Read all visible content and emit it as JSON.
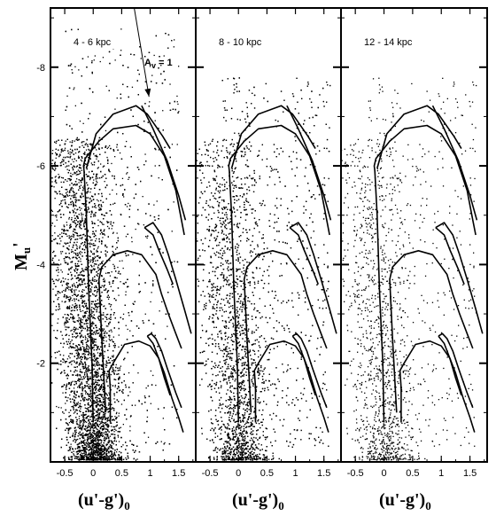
{
  "chart_data": {
    "type": "scatter",
    "ylabel_main": "M",
    "ylabel_sub": "u",
    "ylabel_prime": "'",
    "xlabel_main": "(u'-g')",
    "xlabel_sub": "0",
    "x_ticks": [
      "-0.5",
      "0",
      "0.5",
      "1",
      "1.5"
    ],
    "y_ticks": [
      "-8",
      "-6",
      "-4",
      "-2"
    ],
    "xlim": [
      -0.75,
      1.8
    ],
    "ylim": [
      0,
      -9.2
    ],
    "annotation": {
      "main": "A",
      "sub": "v",
      "rest": " = 1",
      "arrow_from": [
        0.72,
        -9.2
      ],
      "arrow_to": [
        0.98,
        -7.4
      ]
    },
    "panels": [
      {
        "label": "4 - 6 kpc",
        "density": 1.0
      },
      {
        "label": "8 - 10 kpc",
        "density": 0.55
      },
      {
        "label": "12 - 14 kpc",
        "density": 0.12
      }
    ],
    "isochrones": [
      [
        [
          0.0,
          -0.8
        ],
        [
          -0.02,
          -2.0
        ],
        [
          -0.08,
          -3.5
        ],
        [
          -0.12,
          -5.0
        ],
        [
          -0.16,
          -5.9
        ],
        [
          -0.17,
          -6.0
        ],
        [
          -0.14,
          -6.15
        ],
        [
          0.1,
          -6.5
        ],
        [
          0.35,
          -6.75
        ],
        [
          0.75,
          -6.82
        ],
        [
          1.0,
          -6.65
        ],
        [
          1.25,
          -6.2
        ],
        [
          1.45,
          -5.5
        ],
        [
          1.55,
          -4.9
        ],
        [
          1.6,
          -4.6
        ]
      ],
      [
        [
          -0.12,
          -5.95
        ],
        [
          0.05,
          -6.65
        ],
        [
          0.35,
          -7.05
        ],
        [
          0.75,
          -7.22
        ],
        [
          0.95,
          -7.05
        ],
        [
          1.1,
          -6.8
        ],
        [
          1.22,
          -6.6
        ],
        [
          1.35,
          -6.35
        ]
      ],
      [
        [
          0.85,
          -7.22
        ],
        [
          1.05,
          -6.75
        ],
        [
          1.3,
          -6.1
        ],
        [
          1.5,
          -5.4
        ],
        [
          1.62,
          -4.9
        ]
      ],
      [
        [
          0.22,
          -1.0
        ],
        [
          0.15,
          -2.5
        ],
        [
          0.1,
          -3.7
        ],
        [
          0.15,
          -3.95
        ],
        [
          0.35,
          -4.2
        ],
        [
          0.6,
          -4.28
        ],
        [
          0.85,
          -4.2
        ],
        [
          1.1,
          -3.8
        ],
        [
          1.2,
          -3.4
        ],
        [
          1.32,
          -3.0
        ],
        [
          1.45,
          -2.6
        ],
        [
          1.55,
          -2.3
        ]
      ],
      [
        [
          0.9,
          -4.75
        ],
        [
          1.05,
          -4.85
        ],
        [
          1.2,
          -4.6
        ],
        [
          1.32,
          -4.2
        ],
        [
          1.45,
          -3.7
        ],
        [
          1.6,
          -3.1
        ],
        [
          1.72,
          -2.6
        ]
      ],
      [
        [
          0.9,
          -4.75
        ],
        [
          1.05,
          -4.6
        ],
        [
          1.15,
          -4.3
        ],
        [
          1.3,
          -3.9
        ],
        [
          1.4,
          -3.6
        ]
      ],
      [
        [
          0.3,
          -0.8
        ],
        [
          0.3,
          -1.5
        ],
        [
          0.28,
          -1.85
        ],
        [
          0.35,
          -2.0
        ],
        [
          0.55,
          -2.38
        ],
        [
          0.8,
          -2.45
        ],
        [
          1.0,
          -2.35
        ],
        [
          1.15,
          -2.1
        ],
        [
          1.25,
          -1.8
        ],
        [
          1.38,
          -1.3
        ],
        [
          1.5,
          -0.9
        ],
        [
          1.58,
          -0.6
        ]
      ],
      [
        [
          0.95,
          -2.55
        ],
        [
          1.02,
          -2.6
        ],
        [
          1.1,
          -2.5
        ],
        [
          1.2,
          -2.25
        ],
        [
          1.3,
          -1.9
        ],
        [
          1.45,
          -1.4
        ],
        [
          1.55,
          -1.1
        ]
      ],
      [
        [
          0.95,
          -2.55
        ],
        [
          1.05,
          -2.4
        ],
        [
          1.15,
          -2.1
        ],
        [
          1.25,
          -1.7
        ],
        [
          1.35,
          -1.35
        ]
      ]
    ]
  }
}
